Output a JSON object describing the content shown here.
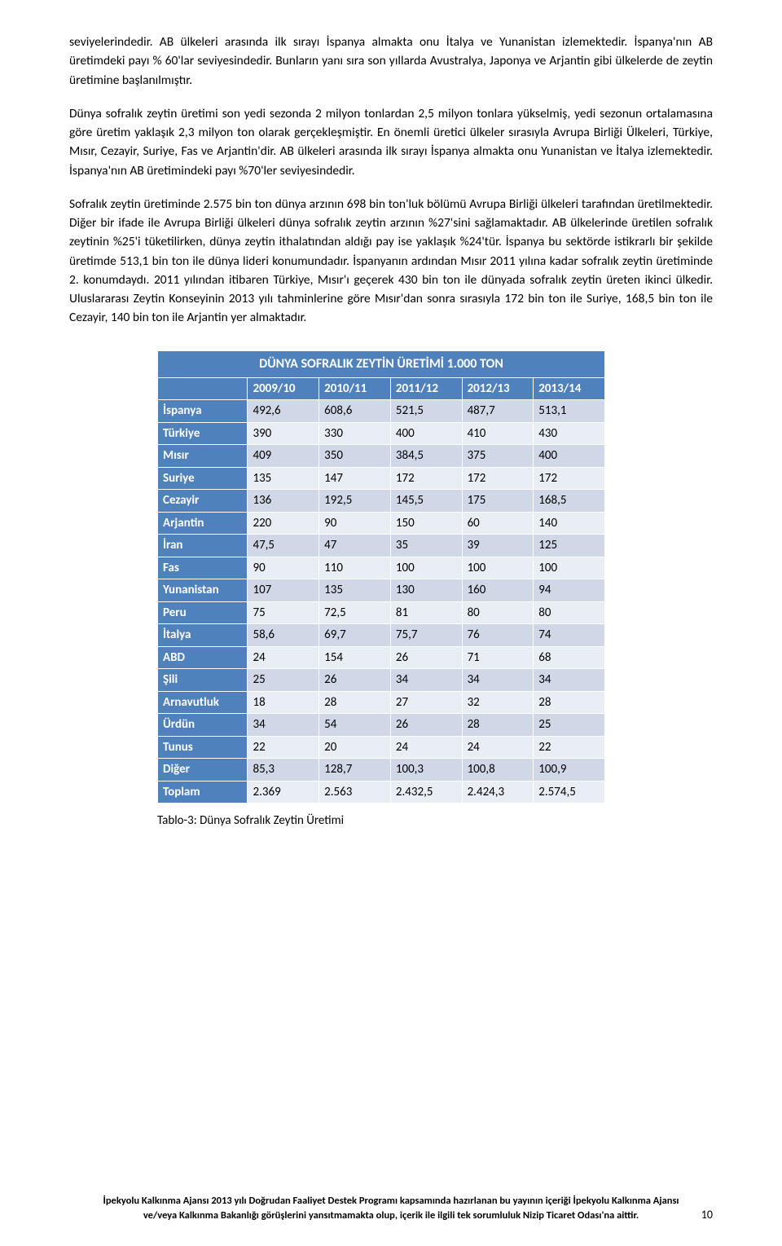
{
  "paragraphs": {
    "p1": "seviyelerindedir. AB ülkeleri arasında ilk sırayı İspanya almakta onu İtalya ve Yunanistan izlemektedir. İspanya'nın AB üretimdeki payı % 60'lar seviyesindedir. Bunların yanı sıra son yıllarda Avustralya, Japonya ve Arjantin gibi ülkelerde de zeytin üretimine başlanılmıştır.",
    "p2": "Dünya sofralık zeytin üretimi son yedi sezonda 2 milyon tonlardan 2,5 milyon tonlara yükselmiş, yedi sezonun ortalamasına göre üretim yaklaşık 2,3 milyon ton olarak gerçekleşmiştir. En önemli üretici ülkeler sırasıyla Avrupa Birliği Ülkeleri, Türkiye, Mısır, Cezayir, Suriye, Fas ve Arjantin'dir. AB ülkeleri arasında ilk sırayı İspanya almakta onu Yunanistan ve İtalya izlemektedir. İspanya'nın AB üretimindeki payı %70'ler seviyesindedir.",
    "p3": "Sofralık zeytin üretiminde 2.575 bin ton dünya arzının 698 bin ton'luk bölümü Avrupa Birliği ülkeleri tarafından üretilmektedir. Diğer bir ifade ile Avrupa Birliği ülkeleri dünya sofralık zeytin arzının %27'sini sağlamaktadır. AB ülkelerinde üretilen sofralık zeytinin  %25'i tüketilirken, dünya zeytin ithalatından aldığı pay ise yaklaşık %24'tür. İspanya bu sektörde istikrarlı bir şekilde üretimde 513,1 bin ton ile dünya lideri konumundadır. İspanyanın ardından Mısır 2011 yılına kadar sofralık zeytin üretiminde 2. konumdaydı. 2011 yılından itibaren Türkiye, Mısır'ı geçerek 430 bin ton ile dünyada sofralık zeytin üreten ikinci ülkedir. Uluslararası Zeytin Konseyinin 2013 yılı tahminlerine göre Mısır'dan sonra sırasıyla 172 bin ton ile Suriye, 168,5 bin ton ile Cezayir, 140 bin ton ile Arjantin yer almaktadır."
  },
  "table": {
    "title": "DÜNYA SOFRALIK ZEYTİN ÜRETİMİ 1.000 TON",
    "title_bg": "#4f81bd",
    "title_fg": "#ffffff",
    "header_bg": "#4f81bd",
    "header_fg": "#ffffff",
    "rowhead_bg": "#4f81bd",
    "rowhead_fg": "#ffffff",
    "band_a_bg": "#d0d8e8",
    "band_b_bg": "#e9edf4",
    "border_color": "#ffffff",
    "years": [
      "2009/10",
      "2010/11",
      "2011/12",
      "2012/13",
      "2013/14"
    ],
    "rows": [
      {
        "name": "İspanya",
        "vals": [
          "492,6",
          "608,6",
          "521,5",
          "487,7",
          "513,1"
        ]
      },
      {
        "name": "Türkiye",
        "vals": [
          "390",
          "330",
          "400",
          "410",
          "430"
        ]
      },
      {
        "name": "Mısır",
        "vals": [
          "409",
          "350",
          "384,5",
          "375",
          "400"
        ]
      },
      {
        "name": "Suriye",
        "vals": [
          "135",
          "147",
          "172",
          "172",
          "172"
        ]
      },
      {
        "name": "Cezayir",
        "vals": [
          "136",
          "192,5",
          "145,5",
          "175",
          "168,5"
        ]
      },
      {
        "name": "Arjantin",
        "vals": [
          "220",
          "90",
          "150",
          "60",
          "140"
        ]
      },
      {
        "name": "İran",
        "vals": [
          "47,5",
          "47",
          "35",
          "39",
          "125"
        ]
      },
      {
        "name": "Fas",
        "vals": [
          "90",
          "110",
          "100",
          "100",
          "100"
        ]
      },
      {
        "name": "Yunanistan",
        "vals": [
          "107",
          "135",
          "130",
          "160",
          "94"
        ]
      },
      {
        "name": "Peru",
        "vals": [
          "75",
          "72,5",
          "81",
          "80",
          "80"
        ]
      },
      {
        "name": "İtalya",
        "vals": [
          "58,6",
          "69,7",
          "75,7",
          "76",
          "74"
        ]
      },
      {
        "name": "ABD",
        "vals": [
          "24",
          "154",
          "26",
          "71",
          "68"
        ]
      },
      {
        "name": "Şili",
        "vals": [
          "25",
          "26",
          "34",
          "34",
          "34"
        ]
      },
      {
        "name": "Arnavutluk",
        "vals": [
          "18",
          "28",
          "27",
          "32",
          "28"
        ]
      },
      {
        "name": "Ürdün",
        "vals": [
          "34",
          "54",
          "26",
          "28",
          "25"
        ]
      },
      {
        "name": "Tunus",
        "vals": [
          "22",
          "20",
          "24",
          "24",
          "22"
        ]
      },
      {
        "name": "Diğer",
        "vals": [
          "85,3",
          "128,7",
          "100,3",
          "100,8",
          "100,9"
        ]
      },
      {
        "name": "Toplam",
        "vals": [
          "2.369",
          "2.563",
          "2.432,5",
          "2.424,3",
          "2.574,5"
        ]
      }
    ],
    "caption": "Tablo-3: Dünya Sofralık Zeytin Üretimi"
  },
  "footer": {
    "line1": "İpekyolu Kalkınma Ajansı 2013 yılı Doğrudan Faaliyet Destek Programı kapsamında hazırlanan bu yayının içeriği İpekyolu Kalkınma Ajansı",
    "line2": "ve/veya Kalkınma Bakanlığı görüşlerini yansıtmamakta olup, içerik ile ilgili tek sorumluluk Nizip Ticaret Odası'na aittir."
  },
  "page_number": "10"
}
